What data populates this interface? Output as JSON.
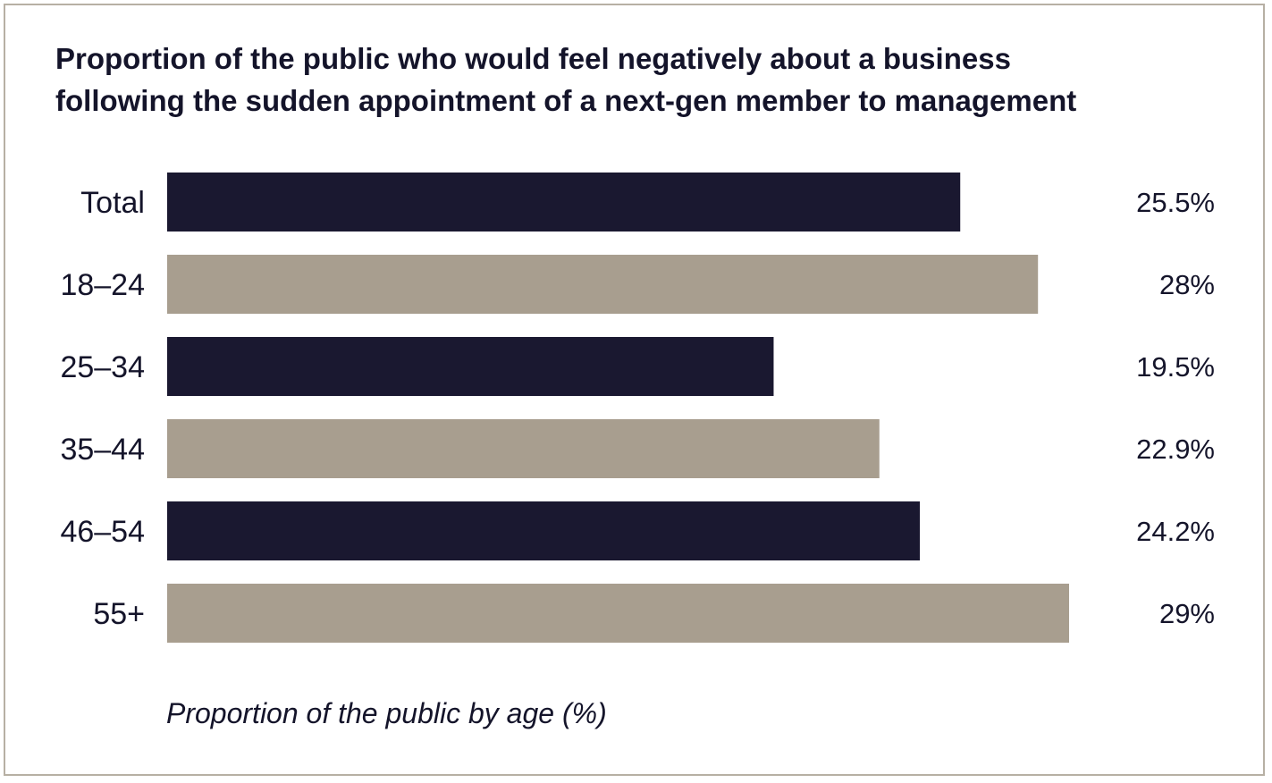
{
  "chart_data": {
    "type": "bar",
    "orientation": "horizontal",
    "title_lines": [
      "Proportion of the public who would feel negatively about a business",
      "following the sudden appointment of a next-gen member to management"
    ],
    "xlabel": "Proportion of the public by age (%)",
    "categories": [
      "Total",
      "18–24",
      "25–34",
      "35–44",
      "46–54",
      "55+"
    ],
    "values": [
      25.5,
      28,
      19.5,
      22.9,
      24.2,
      29
    ],
    "value_labels": [
      "25.5%",
      "28%",
      "19.5%",
      "22.9%",
      "24.2%",
      "29%"
    ],
    "xlim": [
      0,
      29
    ],
    "grid": false,
    "legend": "none",
    "colors": {
      "dark": "#1a1830",
      "light": "#a89e8f",
      "border": "#b7b0a4",
      "text": "#14142a"
    }
  }
}
